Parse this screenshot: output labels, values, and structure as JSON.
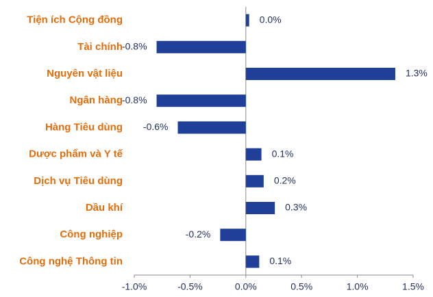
{
  "chart_data": {
    "type": "hbar",
    "categories": [
      "Tiện ích Cộng đồng",
      "Tài chính",
      "Nguyên vật liệu",
      "Ngân hàng",
      "Hàng Tiêu dùng",
      "Dược phẩm và Y tế",
      "Dịch vụ Tiêu dùng",
      "Dầu khí",
      "Công nghiệp",
      "Công nghệ Thông tin"
    ],
    "values": [
      0.03,
      -0.8,
      1.34,
      -0.8,
      -0.61,
      0.14,
      0.16,
      0.26,
      -0.23,
      0.12
    ],
    "value_labels": [
      "0.0%",
      "-0.8%",
      "1.3%",
      "-0.8%",
      "-0.6%",
      "0.1%",
      "0.2%",
      "0.3%",
      "-0.2%",
      "0.1%"
    ],
    "color": "#1f3f99",
    "xlim": [
      -1.0,
      1.5
    ],
    "xticks": [
      {
        "value": -1.0,
        "label": "-1.0%"
      },
      {
        "value": -0.5,
        "label": "-0.5%"
      },
      {
        "value": 0,
        "label": "0.0%"
      },
      {
        "value": 0.5,
        "label": "0.5%"
      },
      {
        "value": 1.0,
        "label": "1.0%"
      },
      {
        "value": 1.5,
        "label": "1.5%"
      }
    ]
  }
}
